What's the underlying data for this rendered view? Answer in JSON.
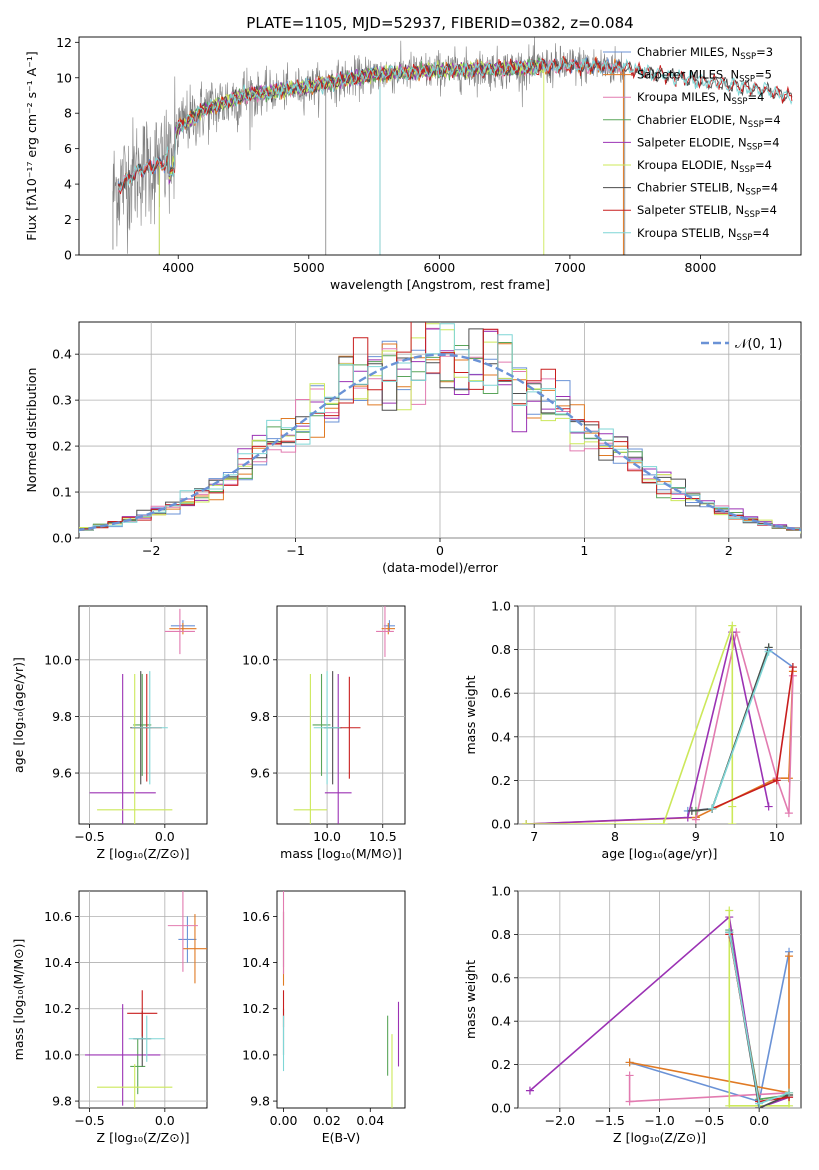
{
  "colors": {
    "chabrier_miles": "#6a92d6",
    "salpeter_miles": "#e07a24",
    "kroupa_miles": "#e27bb0",
    "chabrier_elodie": "#5aa55a",
    "salpeter_elodie": "#9b32b4",
    "kroupa_elodie": "#cce85a",
    "chabrier_stelib": "#4d4d4d",
    "salpeter_stelib": "#c81e1e",
    "kroupa_stelib": "#7fd6d6",
    "data": "#808080",
    "normal": "#6a92d6"
  },
  "chart_data": [
    {
      "id": "spectrum",
      "type": "line",
      "title": "PLATE=1105, MJD=52937, FIBERID=0382, z=0.084",
      "xlabel": "wavelength [Angstrom, rest frame]",
      "ylabel": "Flux [fλ10⁻¹⁷ erg cm⁻² s⁻¹ A⁻¹]",
      "xlim": [
        3240,
        8770
      ],
      "ylim": [
        0,
        12.3
      ],
      "xticks": [
        4000,
        5000,
        6000,
        7000,
        8000
      ],
      "yticks": [
        0,
        2,
        4,
        6,
        8,
        10,
        12
      ],
      "grid": false,
      "legend_position": "right",
      "legend": [
        {
          "key": "chabrier_miles",
          "label": "Chabrier MILES, N",
          "sub": "SSP",
          "suffix": "=3"
        },
        {
          "key": "salpeter_miles",
          "label": "Salpeter MILES, N",
          "sub": "SSP",
          "suffix": "=5"
        },
        {
          "key": "kroupa_miles",
          "label": "Kroupa MILES, N",
          "sub": "SSP",
          "suffix": "=4"
        },
        {
          "key": "chabrier_elodie",
          "label": "Chabrier ELODIE, N",
          "sub": "SSP",
          "suffix": "=4"
        },
        {
          "key": "salpeter_elodie",
          "label": "Salpeter ELODIE, N",
          "sub": "SSP",
          "suffix": "=4"
        },
        {
          "key": "kroupa_elodie",
          "label": "Kroupa ELODIE, N",
          "sub": "SSP",
          "suffix": "=4"
        },
        {
          "key": "chabrier_stelib",
          "label": "Chabrier STELIB, N",
          "sub": "SSP",
          "suffix": "=4"
        },
        {
          "key": "salpeter_stelib",
          "label": "Salpeter STELIB, N",
          "sub": "SSP",
          "suffix": "=4"
        },
        {
          "key": "kroupa_stelib",
          "label": "Kroupa STELIB, N",
          "sub": "SSP",
          "suffix": "=4"
        }
      ],
      "continuum": [
        [
          3500,
          3.6
        ],
        [
          3700,
          4.8
        ],
        [
          3900,
          5.2
        ],
        [
          4000,
          7.2
        ],
        [
          4200,
          8.2
        ],
        [
          4500,
          9.0
        ],
        [
          5000,
          9.5
        ],
        [
          5500,
          10.2
        ],
        [
          6000,
          10.4
        ],
        [
          6500,
          10.5
        ],
        [
          7000,
          10.7
        ],
        [
          7400,
          10.6
        ],
        [
          7600,
          10.3
        ],
        [
          8000,
          9.8
        ],
        [
          8500,
          9.3
        ],
        [
          8700,
          8.9
        ]
      ]
    },
    {
      "id": "residuals",
      "type": "bar",
      "xlabel": "(data-model)/error",
      "ylabel": "Normed distribution",
      "xlim": [
        -2.5,
        2.5
      ],
      "ylim": [
        0,
        0.47
      ],
      "xticks": [
        -2,
        -1,
        0,
        1,
        2
      ],
      "yticks": [
        0.0,
        0.1,
        0.2,
        0.3,
        0.4
      ],
      "grid": true,
      "legend_position": "top-right",
      "normal_label": "𝒩(0, 1)"
    },
    {
      "id": "age_vs_Z",
      "type": "scatter",
      "xlabel": "Z [log₁₀(Z/Z⊙)]",
      "ylabel": "age  [log₁₀(age/yr)]",
      "xlim": [
        -0.57,
        0.28
      ],
      "ylim": [
        9.42,
        10.19
      ],
      "xticks": [
        -0.5,
        0.0
      ],
      "yticks": [
        9.6,
        9.8,
        10.0
      ],
      "grid": true,
      "points": [
        {
          "key": "chabrier_miles",
          "x": 0.12,
          "y": 10.12,
          "xe": 0.08,
          "ye": 0.02
        },
        {
          "key": "salpeter_miles",
          "x": 0.12,
          "y": 10.11,
          "xe": 0.09,
          "ye": 0.02
        },
        {
          "key": "kroupa_miles",
          "x": 0.1,
          "y": 10.1,
          "xe": 0.1,
          "ye": 0.08
        },
        {
          "key": "chabrier_elodie",
          "x": -0.15,
          "y": 9.77,
          "xe": 0.06,
          "ye": 0.18
        },
        {
          "key": "salpeter_elodie",
          "x": -0.28,
          "y": 9.53,
          "xe": 0.22,
          "ye": 0.42
        },
        {
          "key": "kroupa_elodie",
          "x": -0.2,
          "y": 9.47,
          "xe": 0.25,
          "ye": 0.48
        },
        {
          "key": "chabrier_stelib",
          "x": -0.16,
          "y": 9.76,
          "xe": 0.07,
          "ye": 0.2
        },
        {
          "key": "salpeter_stelib",
          "x": -0.12,
          "y": 9.76,
          "xe": 0.1,
          "ye": 0.19
        },
        {
          "key": "kroupa_stelib",
          "x": -0.1,
          "y": 9.76,
          "xe": 0.12,
          "ye": 0.2
        }
      ]
    },
    {
      "id": "age_vs_mass",
      "type": "scatter",
      "xlabel": "mass [log₁₀(M/M⊙)]",
      "ylabel": "",
      "xlim": [
        9.55,
        10.7
      ],
      "ylim": [
        9.42,
        10.19
      ],
      "xticks": [
        10.0,
        10.5
      ],
      "yticks": [
        9.6,
        9.8,
        10.0
      ],
      "grid": true,
      "points": [
        {
          "key": "chabrier_miles",
          "x": 10.56,
          "y": 10.12,
          "xe": 0.05,
          "ye": 0.02
        },
        {
          "key": "salpeter_miles",
          "x": 10.55,
          "y": 10.11,
          "xe": 0.06,
          "ye": 0.02
        },
        {
          "key": "kroupa_miles",
          "x": 10.52,
          "y": 10.1,
          "xe": 0.08,
          "ye": 0.09
        },
        {
          "key": "chabrier_elodie",
          "x": 9.95,
          "y": 9.77,
          "xe": 0.08,
          "ye": 0.18
        },
        {
          "key": "salpeter_elodie",
          "x": 10.1,
          "y": 9.53,
          "xe": 0.12,
          "ye": 0.42
        },
        {
          "key": "kroupa_elodie",
          "x": 9.85,
          "y": 9.47,
          "xe": 0.15,
          "ye": 0.48
        },
        {
          "key": "chabrier_stelib",
          "x": 10.05,
          "y": 9.76,
          "xe": 0.08,
          "ye": 0.2
        },
        {
          "key": "salpeter_stelib",
          "x": 10.2,
          "y": 9.76,
          "xe": 0.1,
          "ye": 0.18
        },
        {
          "key": "kroupa_stelib",
          "x": 10.0,
          "y": 9.76,
          "xe": 0.12,
          "ye": 0.2
        }
      ]
    },
    {
      "id": "mass_weight_vs_age",
      "type": "line",
      "xlabel": "age  [log₁₀(age/yr)]",
      "ylabel": "mass weight",
      "xlim": [
        6.8,
        10.3
      ],
      "ylim": [
        0,
        1.0
      ],
      "xticks": [
        7,
        8,
        9,
        10
      ],
      "yticks": [
        0.0,
        0.2,
        0.4,
        0.6,
        0.8,
        1.0
      ],
      "grid": true,
      "series": [
        {
          "key": "chabrier_miles",
          "x": [
            8.9,
            9.2,
            9.9,
            10.2
          ],
          "y": [
            0.06,
            0.07,
            0.8,
            0.72
          ]
        },
        {
          "key": "salpeter_miles",
          "x": [
            6.9,
            9.0,
            10.0,
            10.15,
            10.2
          ],
          "y": [
            0.0,
            0.03,
            0.21,
            0.21,
            0.7
          ]
        },
        {
          "key": "kroupa_miles",
          "x": [
            9.0,
            9.5,
            10.0,
            10.15,
            10.2
          ],
          "y": [
            0.02,
            0.88,
            0.21,
            0.05,
            0.68
          ]
        },
        {
          "key": "chabrier_elodie",
          "x": [
            9.0,
            9.2,
            9.9
          ],
          "y": [
            0.06,
            0.07,
            0.81
          ]
        },
        {
          "key": "salpeter_elodie",
          "x": [
            6.9,
            8.9,
            9.45,
            9.9
          ],
          "y": [
            0.0,
            0.03,
            0.88,
            0.08
          ]
        },
        {
          "key": "kroupa_elodie",
          "x": [
            6.9,
            8.6,
            9.45,
            9.45,
            9.45
          ],
          "y": [
            0.0,
            0.0,
            0.91,
            0.08,
            0.0
          ]
        },
        {
          "key": "chabrier_stelib",
          "x": [
            8.95,
            9.2,
            9.9
          ],
          "y": [
            0.06,
            0.07,
            0.81
          ]
        },
        {
          "key": "salpeter_stelib",
          "x": [
            9.2,
            10.0,
            10.2
          ],
          "y": [
            0.07,
            0.2,
            0.72
          ]
        },
        {
          "key": "kroupa_stelib",
          "x": [
            9.2,
            9.9
          ],
          "y": [
            0.07,
            0.79
          ]
        }
      ]
    },
    {
      "id": "mass_vs_Z",
      "type": "scatter",
      "xlabel": "Z [log₁₀(Z/Z⊙)]",
      "ylabel": "mass [log₁₀(M/M⊙)]",
      "xlim": [
        -0.57,
        0.28
      ],
      "ylim": [
        9.77,
        10.71
      ],
      "xticks": [
        -0.5,
        0.0
      ],
      "yticks": [
        9.8,
        10.0,
        10.2,
        10.4,
        10.6
      ],
      "grid": true,
      "points": [
        {
          "key": "chabrier_miles",
          "x": 0.15,
          "y": 10.5,
          "xe": 0.06,
          "ye": 0.1
        },
        {
          "key": "salpeter_miles",
          "x": 0.2,
          "y": 10.46,
          "xe": 0.08,
          "ye": 0.15
        },
        {
          "key": "kroupa_miles",
          "x": 0.12,
          "y": 10.56,
          "xe": 0.1,
          "ye": 0.2
        },
        {
          "key": "chabrier_elodie",
          "x": -0.18,
          "y": 9.95,
          "xe": 0.05,
          "ye": 0.12
        },
        {
          "key": "salpeter_elodie",
          "x": -0.28,
          "y": 10.0,
          "xe": 0.25,
          "ye": 0.22
        },
        {
          "key": "kroupa_elodie",
          "x": -0.2,
          "y": 9.86,
          "xe": 0.25,
          "ye": 0.1
        },
        {
          "key": "chabrier_stelib",
          "x": -0.15,
          "y": 10.07,
          "xe": 0.06,
          "ye": 0.12
        },
        {
          "key": "salpeter_stelib",
          "x": -0.15,
          "y": 10.18,
          "xe": 0.1,
          "ye": 0.1
        },
        {
          "key": "kroupa_stelib",
          "x": -0.12,
          "y": 10.07,
          "xe": 0.12,
          "ye": 0.1
        }
      ]
    },
    {
      "id": "mass_vs_EBV",
      "type": "scatter",
      "xlabel": "E(B-V)",
      "ylabel": "",
      "xlim": [
        -0.003,
        0.056
      ],
      "ylim": [
        9.77,
        10.71
      ],
      "xticks": [
        0.0,
        0.02,
        0.04
      ],
      "yticks": [
        9.8,
        10.0,
        10.2,
        10.4,
        10.6
      ],
      "grid": false,
      "points": [
        {
          "key": "chabrier_miles",
          "x": 0.0,
          "y": 10.5,
          "xe": 0,
          "ye": 0.12
        },
        {
          "key": "salpeter_miles",
          "x": 0.0,
          "y": 10.46,
          "xe": 0,
          "ye": 0.16
        },
        {
          "key": "kroupa_miles",
          "x": 0.0,
          "y": 10.55,
          "xe": 0,
          "ye": 0.2
        },
        {
          "key": "chabrier_elodie",
          "x": 0.048,
          "y": 10.04,
          "xe": 0,
          "ye": 0.13
        },
        {
          "key": "salpeter_elodie",
          "x": 0.053,
          "y": 10.09,
          "xe": 0,
          "ye": 0.14
        },
        {
          "key": "kroupa_elodie",
          "x": 0.05,
          "y": 9.93,
          "xe": 0,
          "ye": 0.16
        },
        {
          "key": "chabrier_stelib",
          "x": 0.0,
          "y": 10.1,
          "xe": 0,
          "ye": 0.1
        },
        {
          "key": "salpeter_stelib",
          "x": 0.0,
          "y": 10.2,
          "xe": 0,
          "ye": 0.08
        },
        {
          "key": "kroupa_stelib",
          "x": 0.0,
          "y": 10.05,
          "xe": 0,
          "ye": 0.12
        }
      ]
    },
    {
      "id": "mass_weight_vs_Z",
      "type": "line",
      "xlabel": "Z [log₁₀(Z/Z⊙)]",
      "ylabel": "mass weight",
      "xlim": [
        -2.42,
        0.42
      ],
      "ylim": [
        0,
        1.0
      ],
      "xticks": [
        -2.0,
        -1.5,
        -1.0,
        -0.5,
        0.0
      ],
      "yticks": [
        0.0,
        0.2,
        0.4,
        0.6,
        0.8,
        1.0
      ],
      "grid": true,
      "series": [
        {
          "key": "chabrier_miles",
          "x": [
            -1.3,
            0.0,
            0.3
          ],
          "y": [
            0.21,
            0.03,
            0.72
          ]
        },
        {
          "key": "salpeter_miles",
          "x": [
            -1.3,
            0.3,
            0.3
          ],
          "y": [
            0.21,
            0.07,
            0.7
          ]
        },
        {
          "key": "kroupa_miles",
          "x": [
            -1.3,
            -1.3,
            0.3
          ],
          "y": [
            0.15,
            0.03,
            0.07
          ]
        },
        {
          "key": "chabrier_elodie",
          "x": [
            -0.3,
            0.0,
            0.3
          ],
          "y": [
            0.82,
            0.04,
            0.06
          ]
        },
        {
          "key": "salpeter_elodie",
          "x": [
            -2.3,
            -0.3,
            0.0,
            0.3
          ],
          "y": [
            0.08,
            0.88,
            0.0,
            0.05
          ]
        },
        {
          "key": "kroupa_elodie",
          "x": [
            -0.3,
            -0.3,
            0.3,
            0.3
          ],
          "y": [
            0.91,
            0.01,
            0.01,
            0.07
          ]
        },
        {
          "key": "chabrier_stelib",
          "x": [
            -0.3,
            0.0,
            0.3
          ],
          "y": [
            0.81,
            0.0,
            0.06
          ]
        },
        {
          "key": "salpeter_stelib",
          "x": [
            -0.3,
            0.0,
            0.3
          ],
          "y": [
            0.8,
            0.03,
            0.05
          ]
        },
        {
          "key": "kroupa_stelib",
          "x": [
            -0.3,
            0.0,
            0.3
          ],
          "y": [
            0.81,
            0.02,
            0.07
          ]
        }
      ]
    }
  ]
}
